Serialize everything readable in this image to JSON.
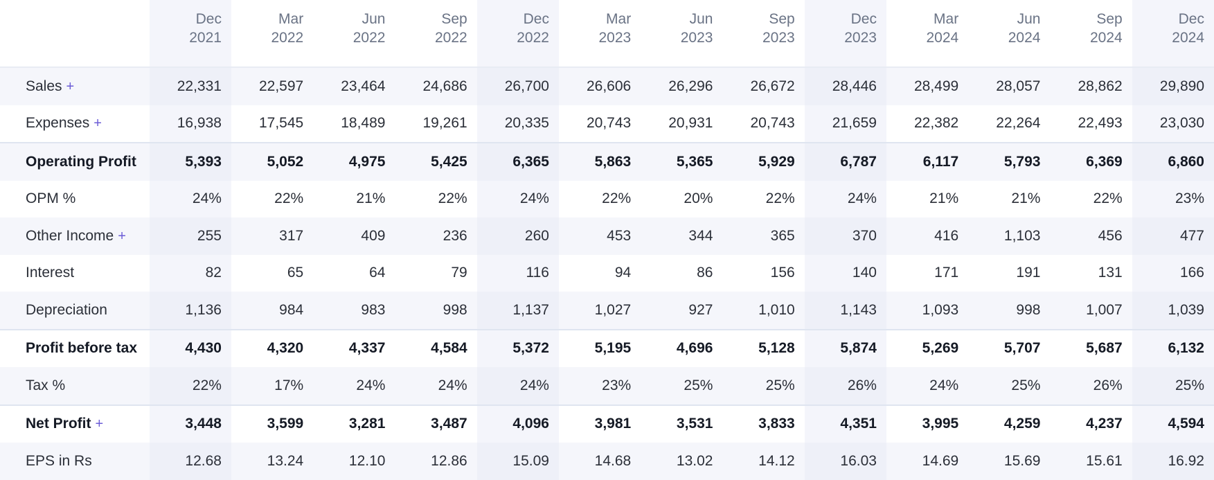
{
  "columns": [
    {
      "month": "Dec",
      "year": "2021"
    },
    {
      "month": "Mar",
      "year": "2022"
    },
    {
      "month": "Jun",
      "year": "2022"
    },
    {
      "month": "Sep",
      "year": "2022"
    },
    {
      "month": "Dec",
      "year": "2022"
    },
    {
      "month": "Mar",
      "year": "2023"
    },
    {
      "month": "Jun",
      "year": "2023"
    },
    {
      "month": "Sep",
      "year": "2023"
    },
    {
      "month": "Dec",
      "year": "2023"
    },
    {
      "month": "Mar",
      "year": "2024"
    },
    {
      "month": "Jun",
      "year": "2024"
    },
    {
      "month": "Sep",
      "year": "2024"
    },
    {
      "month": "Dec",
      "year": "2024"
    }
  ],
  "rows": [
    {
      "label": "Sales",
      "expand": "+",
      "values": [
        "22,331",
        "22,597",
        "23,464",
        "24,686",
        "26,700",
        "26,606",
        "26,296",
        "26,672",
        "28,446",
        "28,499",
        "28,057",
        "28,862",
        "29,890"
      ]
    },
    {
      "label": "Expenses",
      "expand": "+",
      "values": [
        "16,938",
        "17,545",
        "18,489",
        "19,261",
        "20,335",
        "20,743",
        "20,931",
        "20,743",
        "21,659",
        "22,382",
        "22,264",
        "22,493",
        "23,030"
      ]
    },
    {
      "label": "Operating Profit",
      "values": [
        "5,393",
        "5,052",
        "4,975",
        "5,425",
        "6,365",
        "5,863",
        "5,365",
        "5,929",
        "6,787",
        "6,117",
        "5,793",
        "6,369",
        "6,860"
      ]
    },
    {
      "label": "OPM %",
      "values": [
        "24%",
        "22%",
        "21%",
        "22%",
        "24%",
        "22%",
        "20%",
        "22%",
        "24%",
        "21%",
        "21%",
        "22%",
        "23%"
      ]
    },
    {
      "label": "Other Income",
      "expand": "+",
      "values": [
        "255",
        "317",
        "409",
        "236",
        "260",
        "453",
        "344",
        "365",
        "370",
        "416",
        "1,103",
        "456",
        "477"
      ]
    },
    {
      "label": "Interest",
      "values": [
        "82",
        "65",
        "64",
        "79",
        "116",
        "94",
        "86",
        "156",
        "140",
        "171",
        "191",
        "131",
        "166"
      ]
    },
    {
      "label": "Depreciation",
      "values": [
        "1,136",
        "984",
        "983",
        "998",
        "1,137",
        "1,027",
        "927",
        "1,010",
        "1,143",
        "1,093",
        "998",
        "1,007",
        "1,039"
      ]
    },
    {
      "label": "Profit before tax",
      "values": [
        "4,430",
        "4,320",
        "4,337",
        "4,584",
        "5,372",
        "5,195",
        "4,696",
        "5,128",
        "5,874",
        "5,269",
        "5,707",
        "5,687",
        "6,132"
      ]
    },
    {
      "label": "Tax %",
      "values": [
        "22%",
        "17%",
        "24%",
        "24%",
        "24%",
        "23%",
        "25%",
        "25%",
        "26%",
        "24%",
        "25%",
        "26%",
        "25%"
      ]
    },
    {
      "label": "Net Profit",
      "expand": "+",
      "values": [
        "3,448",
        "3,599",
        "3,281",
        "3,487",
        "4,096",
        "3,981",
        "3,531",
        "3,833",
        "4,351",
        "3,995",
        "4,259",
        "4,237",
        "4,594"
      ]
    },
    {
      "label": "EPS in Rs",
      "values": [
        "12.68",
        "13.24",
        "12.10",
        "12.86",
        "15.09",
        "14.68",
        "13.02",
        "14.12",
        "16.03",
        "14.69",
        "15.69",
        "15.61",
        "16.92"
      ]
    }
  ],
  "colors": {
    "accent": "#6b5cd6",
    "band": "#f5f6fb",
    "divider": "#dfe5f0",
    "header_text": "#6a7385"
  }
}
